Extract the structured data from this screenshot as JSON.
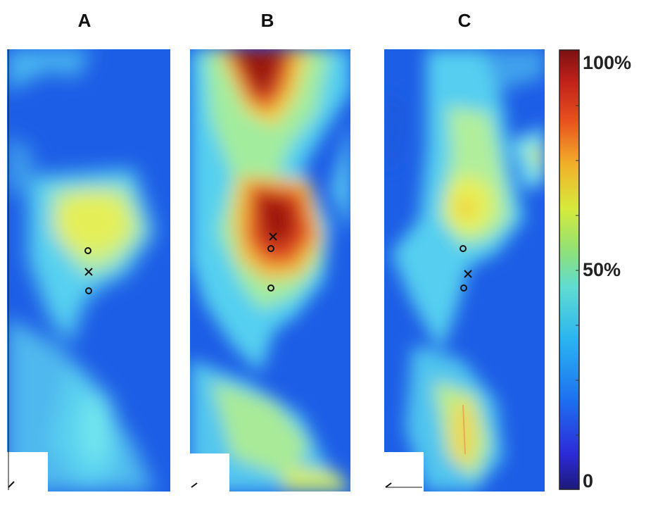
{
  "panels": [
    {
      "label": "A"
    },
    {
      "label": "B"
    },
    {
      "label": "C"
    }
  ],
  "colorbar": {
    "max_label": "100%",
    "mid_label": "50%",
    "min_label": "0"
  },
  "colors": {
    "deep_blue": "#1450e0",
    "cyan": "#5ad8f0",
    "yellow": "#e8f048",
    "red": "#d02818",
    "dark_red": "#8c1010"
  },
  "markers": [
    "circle-marker",
    "cross-marker"
  ]
}
